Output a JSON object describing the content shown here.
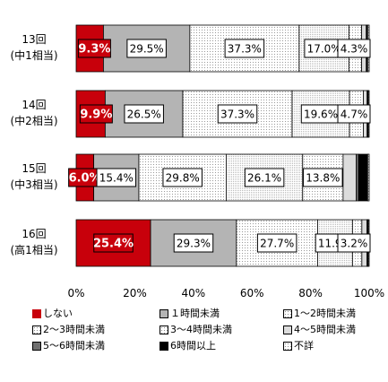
{
  "chart_data": {
    "type": "bar",
    "orientation": "horizontal",
    "stacked": true,
    "xlim": [
      0,
      100
    ],
    "x_ticks": [
      "0%",
      "20%",
      "40%",
      "60%",
      "80%",
      "100%"
    ],
    "categories": [
      {
        "line1": "13回",
        "line2": "(中1相当)"
      },
      {
        "line1": "14回",
        "line2": "(中2相当)"
      },
      {
        "line1": "15回",
        "line2": "(中3相当)"
      },
      {
        "line1": "16回",
        "line2": "(高1相当)"
      }
    ],
    "series": [
      {
        "name": "しない",
        "color": "#c8000b",
        "pattern": "solid",
        "values": [
          9.3,
          9.9,
          6.0,
          25.4
        ]
      },
      {
        "name": "１時間未満",
        "color": "#b4b4b4",
        "pattern": "solid",
        "values": [
          29.5,
          26.5,
          15.4,
          29.3
        ]
      },
      {
        "name": "1～2時間未満",
        "color": "#ffffff",
        "pattern": "dots",
        "values": [
          37.3,
          37.3,
          29.8,
          27.7
        ]
      },
      {
        "name": "2～3時間未満",
        "color": "#ffffff",
        "pattern": "dots-fine",
        "values": [
          17.0,
          19.6,
          26.1,
          11.9
        ]
      },
      {
        "name": "3～4時間未満",
        "color": "#ffffff",
        "pattern": "dots",
        "values": [
          4.3,
          4.7,
          13.8,
          3.2
        ]
      },
      {
        "name": "4～5時間未満",
        "color": "#dcdcdc",
        "pattern": "solid",
        "values": [
          1.6,
          1.3,
          4.5,
          1.7
        ]
      },
      {
        "name": "5～6時間未満",
        "color": "#707070",
        "pattern": "solid",
        "values": [
          0.3,
          0.2,
          0.8,
          0.3
        ]
      },
      {
        "name": "6時間以上",
        "color": "#000000",
        "pattern": "solid",
        "values": [
          0.2,
          0.2,
          3.1,
          0.2
        ]
      },
      {
        "name": "不詳",
        "color": "#ffffff",
        "pattern": "dots",
        "values": [
          0.5,
          0.3,
          0.5,
          0.3
        ]
      }
    ],
    "data_labels": [
      [
        "9.3%",
        "29.5%",
        "37.3%",
        "17.0%",
        "4.3%"
      ],
      [
        "9.9%",
        "26.5%",
        "37.3%",
        "19.6%",
        "4.7%"
      ],
      [
        "6.0%",
        "15.4%",
        "29.8%",
        "26.1%",
        "13.8%"
      ],
      [
        "25.4%",
        "29.3%",
        "27.7%",
        "11.9%",
        "3.2%"
      ]
    ],
    "legend_position": "bottom",
    "grid": false
  }
}
